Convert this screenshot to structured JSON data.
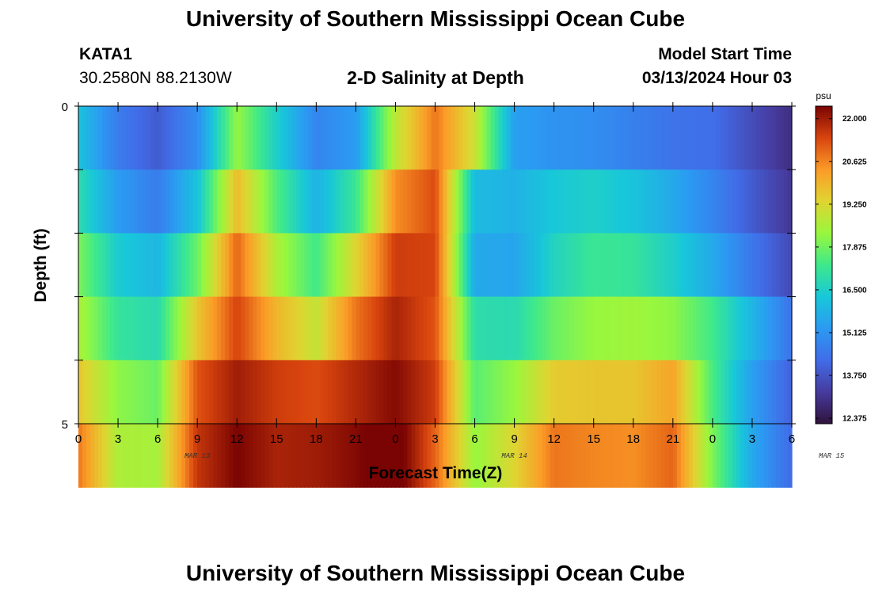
{
  "header": {
    "title": "University of Southern Mississippi Ocean Cube",
    "station_id": "KATA1",
    "coordinates": "30.2580N  88.2130W",
    "plot_title": "2-D Salinity at Depth",
    "model_start_label": "Model Start Time",
    "model_start_value": "03/13/2024 Hour 03",
    "footer_title": "University of Southern Mississippi Ocean Cube"
  },
  "chart_data": {
    "type": "heatmap",
    "title": "2-D Salinity at Depth",
    "xlabel": "Forecast Time(Z)",
    "ylabel": "Depth (ft)",
    "x_tick_labels": [
      "0",
      "3",
      "6",
      "9",
      "12",
      "15",
      "18",
      "21",
      "0",
      "3",
      "6",
      "9",
      "12",
      "15",
      "18",
      "21",
      "0",
      "3",
      "6"
    ],
    "date_labels": [
      {
        "text": "MAR 13",
        "at_hour": 9
      },
      {
        "text": "MAR 14",
        "at_hour": 33
      },
      {
        "text": "MAR 15",
        "at_hour": 57
      }
    ],
    "y_tick_labels": [
      "0",
      "5"
    ],
    "ylim": [
      0,
      5
    ],
    "x_range_hours": [
      0,
      54
    ],
    "depth_levels": [
      0,
      1,
      2,
      3,
      4,
      5
    ],
    "time_hours": [
      0,
      3,
      6,
      9,
      12,
      15,
      18,
      21,
      24,
      27,
      30,
      33,
      36,
      39,
      42,
      45,
      48,
      51,
      54
    ],
    "values": [
      [
        16.2,
        14.6,
        13.9,
        15.0,
        18.3,
        16.5,
        14.8,
        15.3,
        18.8,
        20.8,
        19.0,
        15.4,
        15.1,
        15.0,
        14.7,
        14.4,
        14.3,
        13.6,
        12.9
      ],
      [
        16.9,
        15.3,
        14.6,
        16.2,
        19.8,
        17.5,
        15.8,
        17.2,
        20.5,
        21.3,
        16.0,
        15.8,
        16.3,
        16.5,
        16.2,
        15.6,
        14.8,
        13.9,
        13.1
      ],
      [
        18.0,
        16.4,
        15.9,
        17.8,
        21.0,
        18.6,
        17.3,
        19.3,
        21.5,
        21.4,
        15.6,
        15.5,
        16.6,
        17.2,
        17.1,
        16.5,
        15.6,
        14.5,
        13.5
      ],
      [
        18.6,
        17.1,
        16.8,
        19.6,
        21.4,
        19.9,
        18.9,
        20.8,
        21.9,
        21.2,
        16.9,
        16.8,
        17.8,
        18.3,
        18.4,
        18.2,
        17.3,
        15.9,
        14.4
      ],
      [
        19.6,
        18.2,
        17.8,
        21.2,
        22.0,
        21.5,
        21.3,
        21.8,
        22.3,
        21.5,
        17.6,
        18.3,
        19.5,
        19.6,
        19.6,
        20.2,
        17.4,
        15.4,
        14.0
      ],
      [
        20.8,
        18.6,
        18.5,
        21.6,
        22.4,
        21.9,
        22.0,
        22.3,
        22.8,
        21.0,
        18.3,
        19.3,
        20.8,
        20.6,
        20.5,
        21.0,
        18.0,
        15.6,
        14.2
      ]
    ],
    "colorbar": {
      "unit": "psu",
      "min": 12.2,
      "max": 22.4,
      "tick_values": [
        "22.000",
        "20.625",
        "19.250",
        "17.875",
        "16.500",
        "15.125",
        "13.750",
        "12.375"
      ]
    }
  }
}
